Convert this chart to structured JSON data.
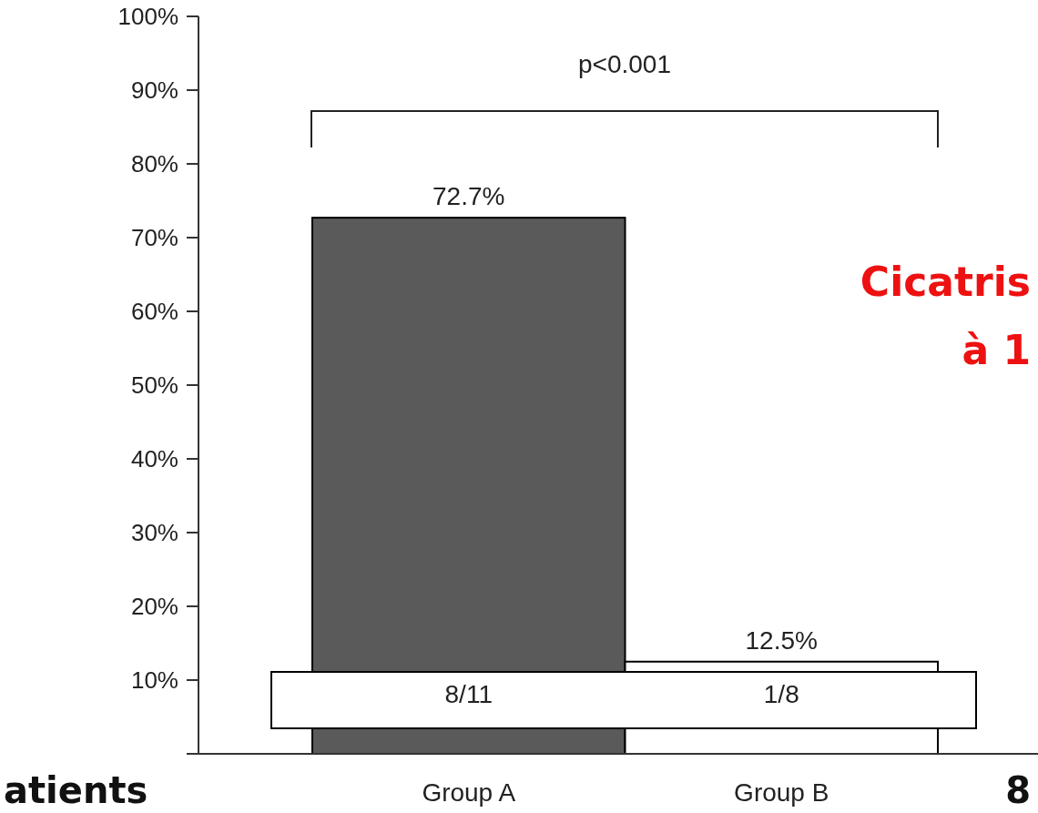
{
  "chart_data": {
    "type": "bar",
    "categories": [
      "Group A",
      "Group B"
    ],
    "values": [
      72.7,
      12.5
    ],
    "colors": [
      "#5a5a5a",
      "#ffffff"
    ],
    "value_labels": [
      "72.7%",
      "12.5%"
    ],
    "ylim": [
      0,
      100
    ],
    "yticks": [
      {
        "value": 0,
        "label": null
      },
      {
        "value": 10,
        "label": "10%"
      },
      {
        "value": 20,
        "label": "20%"
      },
      {
        "value": 30,
        "label": "30%"
      },
      {
        "value": 40,
        "label": "40%"
      },
      {
        "value": 50,
        "label": "50%"
      },
      {
        "value": 60,
        "label": "60%"
      },
      {
        "value": 70,
        "label": "70%"
      },
      {
        "value": 80,
        "label": "80%"
      },
      {
        "value": 90,
        "label": "90%"
      },
      {
        "value": 100,
        "label": "100%"
      }
    ],
    "grid": false,
    "annotations": [
      "p<0.001",
      "8/11",
      "1/8",
      "Cicatris",
      "à 1",
      "atients",
      "8"
    ]
  }
}
